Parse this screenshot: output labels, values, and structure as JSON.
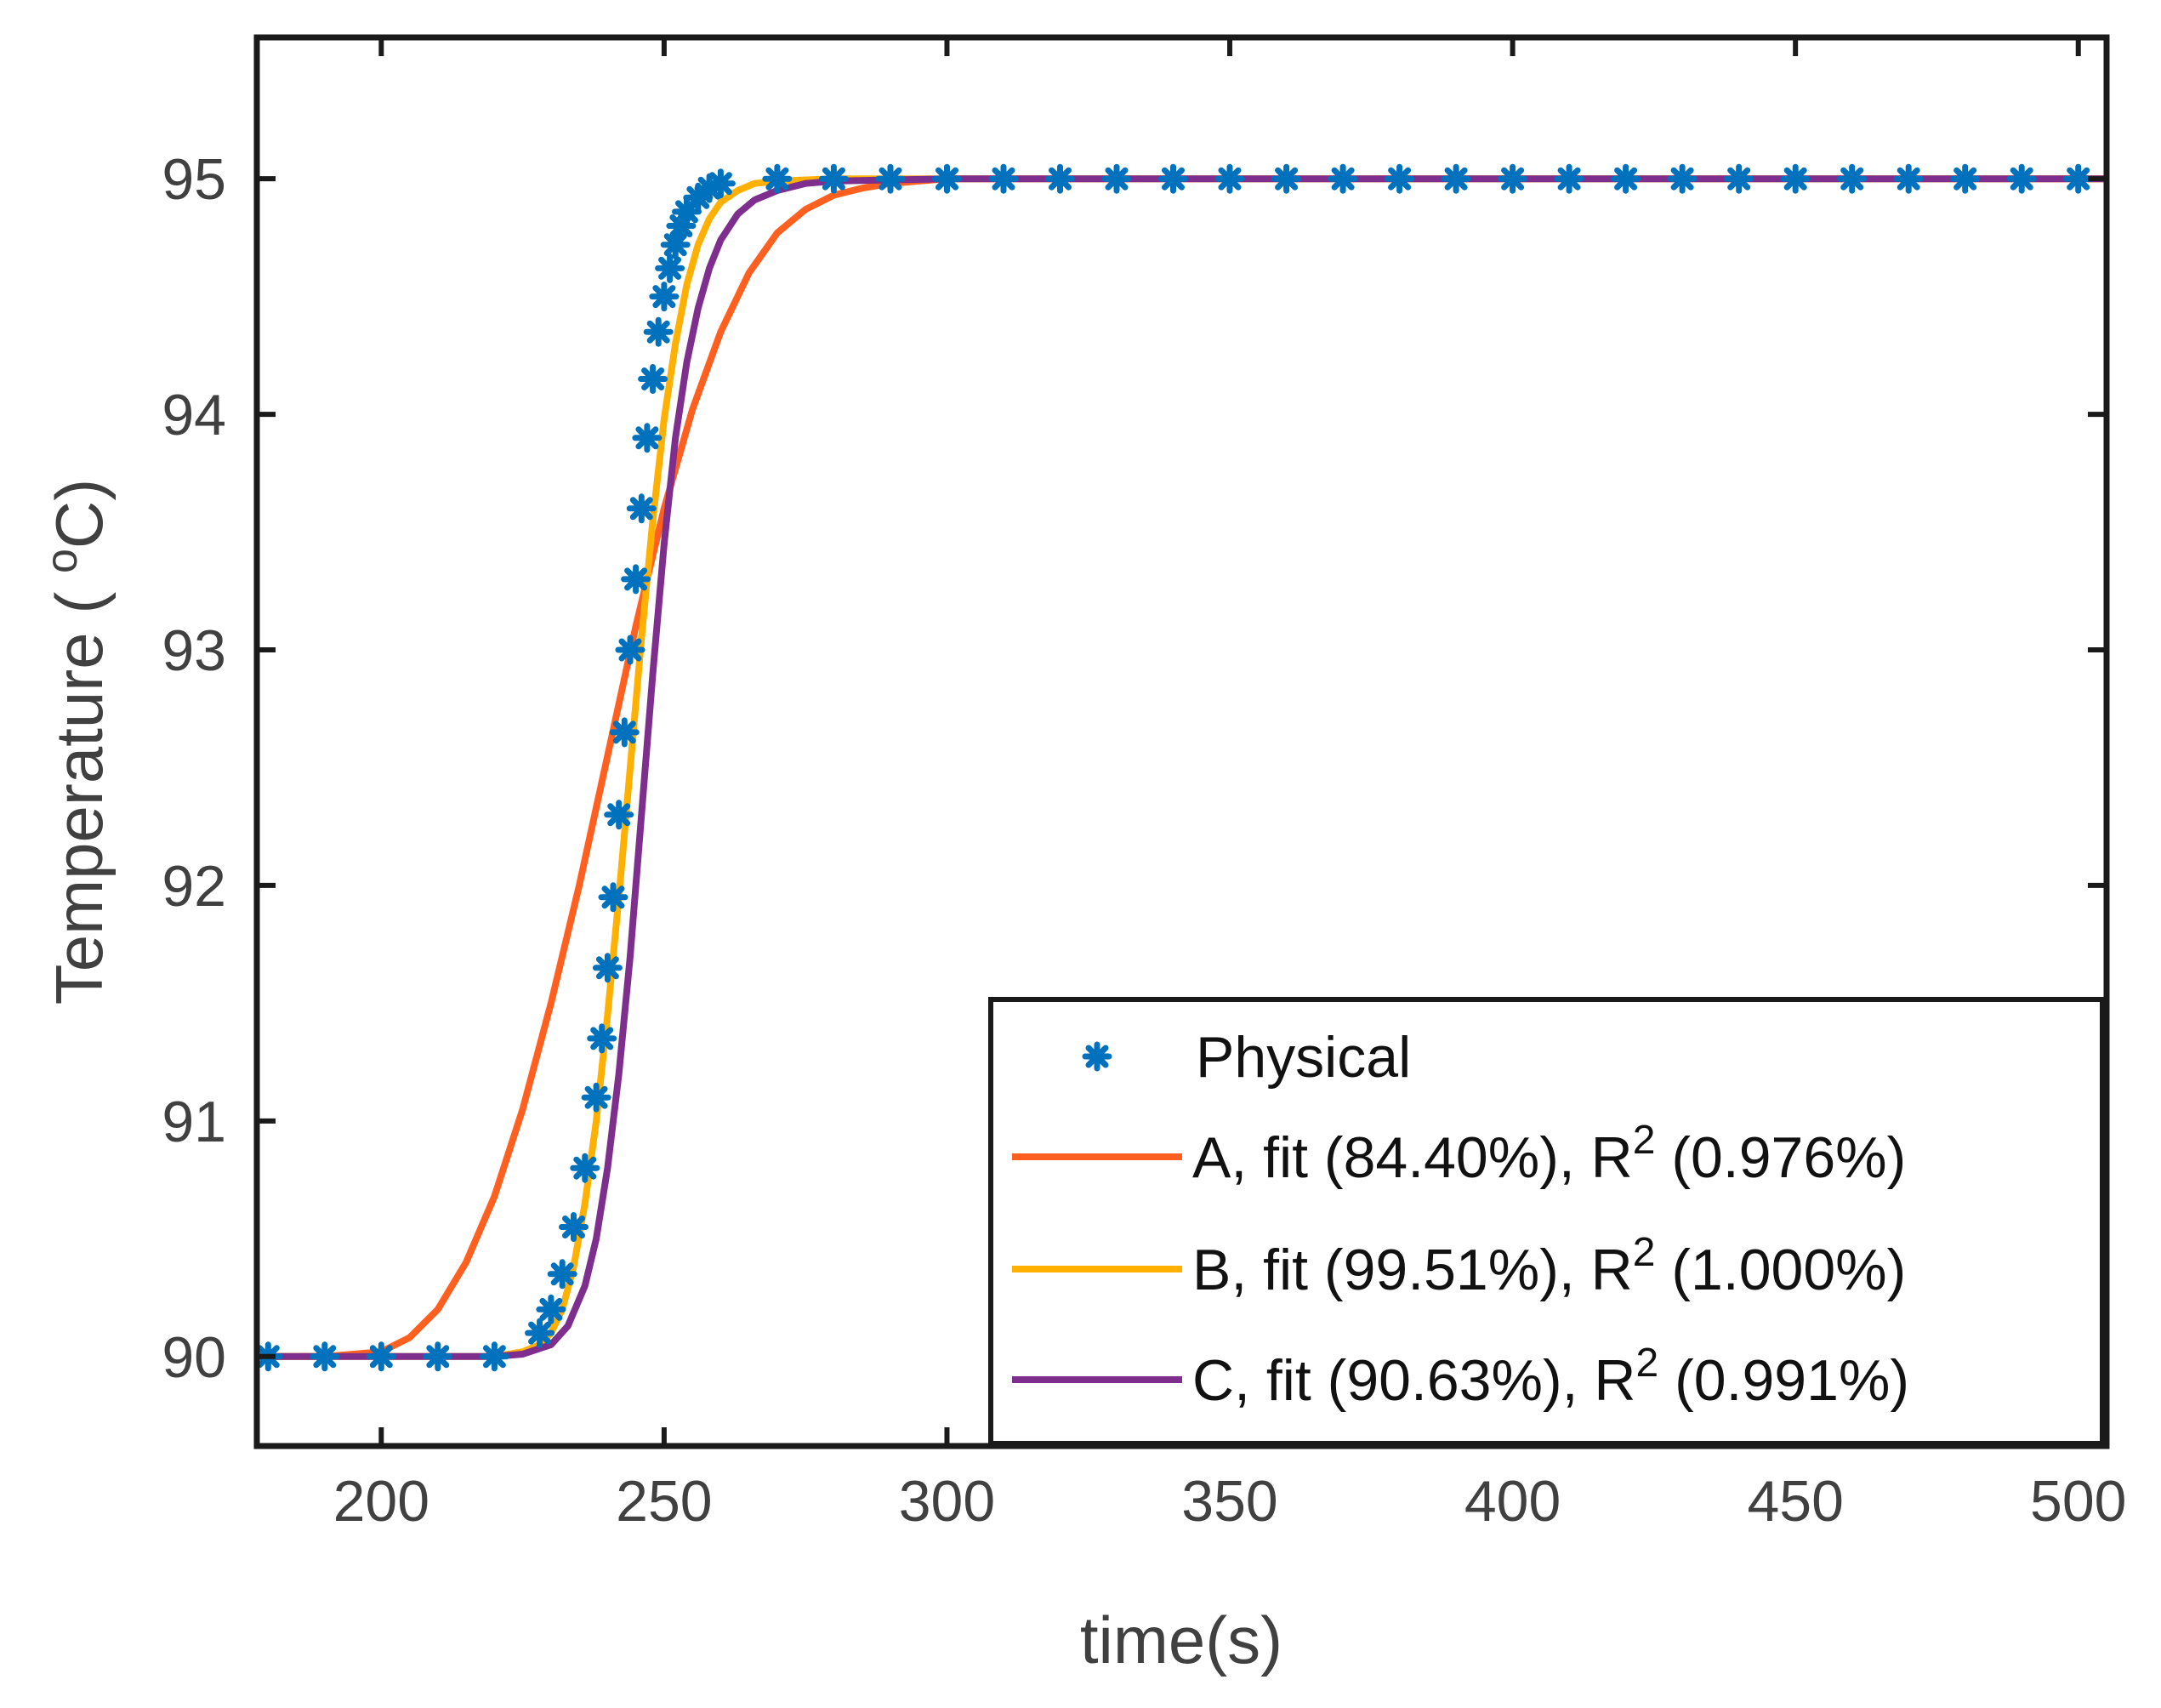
{
  "chart_data": {
    "type": "line",
    "xlabel": "time(s)",
    "ylabel": "Temperature ( ",
    "ylabel_sup": "o",
    "ylabel_unit": "C)",
    "xlim": [
      178,
      505
    ],
    "ylim": [
      89.62,
      95.6
    ],
    "xticks": [
      "200",
      "250",
      "300",
      "350",
      "400",
      "450",
      "500"
    ],
    "yticks": [
      "90",
      "91",
      "92",
      "93",
      "94",
      "95"
    ],
    "legend_position": "bottom-right",
    "physical": {
      "name": "Physical",
      "color": "#0072BD",
      "x": [
        180,
        190,
        200,
        210,
        220,
        228,
        230,
        232,
        234,
        236,
        238,
        239,
        240,
        241,
        242,
        243,
        244,
        245,
        246,
        247,
        248,
        249,
        250,
        251,
        252,
        253,
        254,
        256,
        258,
        260,
        270,
        280,
        290,
        300,
        310,
        320,
        330,
        340,
        350,
        360,
        370,
        380,
        390,
        400,
        410,
        420,
        430,
        440,
        450,
        460,
        470,
        480,
        490,
        500
      ],
      "y": [
        90.0,
        90.0,
        90.0,
        90.0,
        90.0,
        90.1,
        90.2,
        90.35,
        90.55,
        90.8,
        91.1,
        91.35,
        91.65,
        91.95,
        92.3,
        92.65,
        93.0,
        93.3,
        93.6,
        93.9,
        94.15,
        94.35,
        94.5,
        94.62,
        94.72,
        94.8,
        94.86,
        94.92,
        94.96,
        94.98,
        95.0,
        95.0,
        95.0,
        95.0,
        95.0,
        95.0,
        95.0,
        95.0,
        95.0,
        95.0,
        95.0,
        95.0,
        95.0,
        95.0,
        95.0,
        95.0,
        95.0,
        95.0,
        95.0,
        95.0,
        95.0,
        95.0,
        95.0,
        95.0
      ]
    },
    "series": [
      {
        "name": "A",
        "label_prefix": "A, fit (84.40%), R",
        "label_suffix": " (0.976%)",
        "color": "#FF5F1F",
        "x": [
          178,
          190,
          200,
          205,
          210,
          215,
          220,
          225,
          230,
          235,
          240,
          245,
          250,
          255,
          260,
          265,
          270,
          275,
          280,
          285,
          290,
          295,
          300,
          310,
          330,
          360,
          400,
          450,
          505
        ],
        "y": [
          90.0,
          90.0,
          90.02,
          90.08,
          90.2,
          90.4,
          90.68,
          91.05,
          91.5,
          92.0,
          92.55,
          93.1,
          93.6,
          94.02,
          94.35,
          94.6,
          94.77,
          94.87,
          94.93,
          94.96,
          94.98,
          94.99,
          95.0,
          95.0,
          95.0,
          95.0,
          95.0,
          95.0,
          95.0
        ]
      },
      {
        "name": "B",
        "label_prefix": "B, fit (99.51%), R",
        "label_suffix": " (1.000%)",
        "color": "#FFB000",
        "x": [
          178,
          200,
          220,
          225,
          228,
          230,
          232,
          234,
          236,
          238,
          240,
          242,
          244,
          246,
          248,
          250,
          252,
          254,
          256,
          258,
          260,
          263,
          266,
          270,
          280,
          300,
          350,
          400,
          450,
          505
        ],
        "y": [
          90.0,
          90.0,
          90.0,
          90.02,
          90.05,
          90.1,
          90.2,
          90.38,
          90.65,
          91.0,
          91.45,
          91.95,
          92.5,
          93.05,
          93.55,
          93.98,
          94.3,
          94.55,
          94.72,
          94.83,
          94.9,
          94.95,
          94.98,
          94.99,
          95.0,
          95.0,
          95.0,
          95.0,
          95.0,
          95.0
        ]
      },
      {
        "name": "C",
        "label_prefix": "C, fit (90.63%), R",
        "label_suffix": " (0.991%)",
        "color": "#7E2F8E",
        "x": [
          178,
          200,
          220,
          225,
          230,
          233,
          236,
          238,
          240,
          242,
          244,
          246,
          248,
          250,
          252,
          254,
          256,
          258,
          260,
          263,
          266,
          270,
          275,
          280,
          300,
          350,
          400,
          450,
          505
        ],
        "y": [
          90.0,
          90.0,
          90.0,
          90.01,
          90.05,
          90.13,
          90.3,
          90.5,
          90.8,
          91.2,
          91.7,
          92.3,
          92.9,
          93.45,
          93.9,
          94.22,
          94.45,
          94.62,
          94.74,
          94.85,
          94.91,
          94.95,
          94.98,
          94.99,
          95.0,
          95.0,
          95.0,
          95.0,
          95.0
        ]
      }
    ],
    "r_superscript": "2"
  }
}
